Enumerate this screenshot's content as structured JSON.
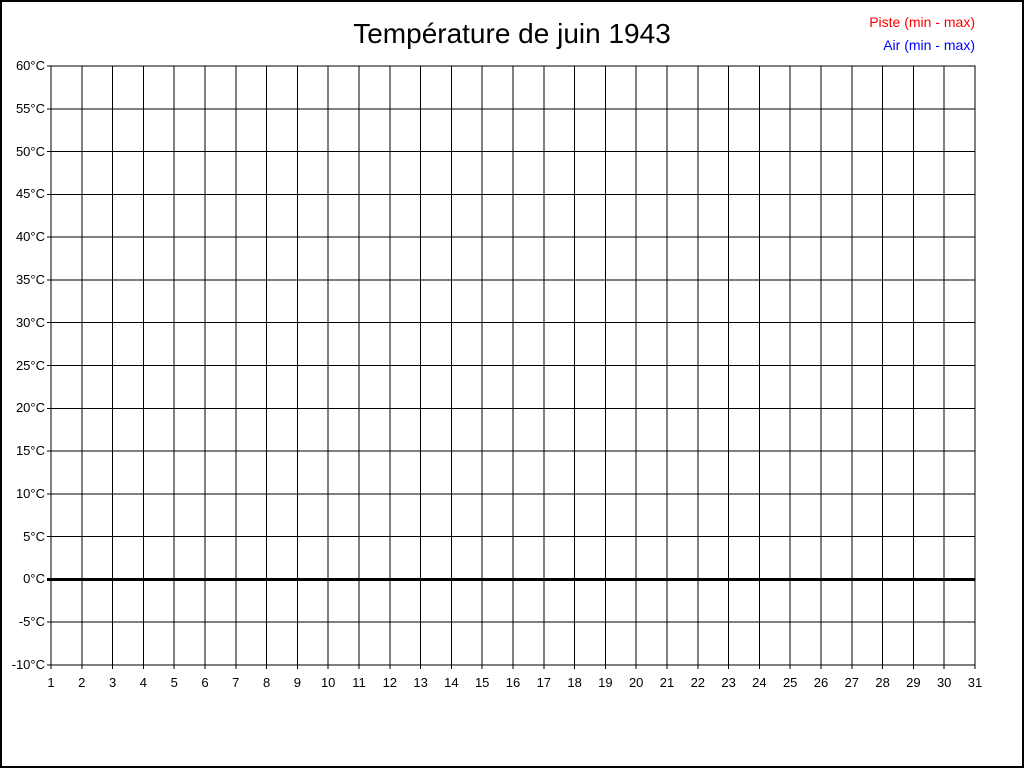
{
  "title": "Température de juin 1943",
  "legend": {
    "items": [
      {
        "label": "Piste (min - max)",
        "color": "#ff0000"
      },
      {
        "label": "Air (min - max)",
        "color": "#0000ff"
      }
    ]
  },
  "axes": {
    "y_tick_labels": [
      "60°C",
      "55°C",
      "50°C",
      "45°C",
      "40°C",
      "35°C",
      "30°C",
      "25°C",
      "20°C",
      "15°C",
      "10°C",
      "5°C",
      "0°C",
      "-5°C",
      "-10°C"
    ],
    "x_tick_labels": [
      "1",
      "2",
      "3",
      "4",
      "5",
      "6",
      "7",
      "8",
      "9",
      "10",
      "11",
      "12",
      "13",
      "14",
      "15",
      "16",
      "17",
      "18",
      "19",
      "20",
      "21",
      "22",
      "23",
      "24",
      "25",
      "26",
      "27",
      "28",
      "29",
      "30",
      "31"
    ]
  },
  "chart_data": {
    "type": "line",
    "title": "Température de juin 1943",
    "xlabel": "",
    "ylabel": "",
    "x": [
      1,
      2,
      3,
      4,
      5,
      6,
      7,
      8,
      9,
      10,
      11,
      12,
      13,
      14,
      15,
      16,
      17,
      18,
      19,
      20,
      21,
      22,
      23,
      24,
      25,
      26,
      27,
      28,
      29,
      30,
      31
    ],
    "xlim": [
      1,
      31
    ],
    "ylim": [
      -10,
      60
    ],
    "y_tick_step": 5,
    "grid": true,
    "legend_position": "top-right",
    "emphasized_y_line": 0,
    "series": [
      {
        "name": "Piste (min - max)",
        "color": "#ff0000",
        "values": []
      },
      {
        "name": "Air (min - max)",
        "color": "#0000ff",
        "values": []
      }
    ]
  }
}
